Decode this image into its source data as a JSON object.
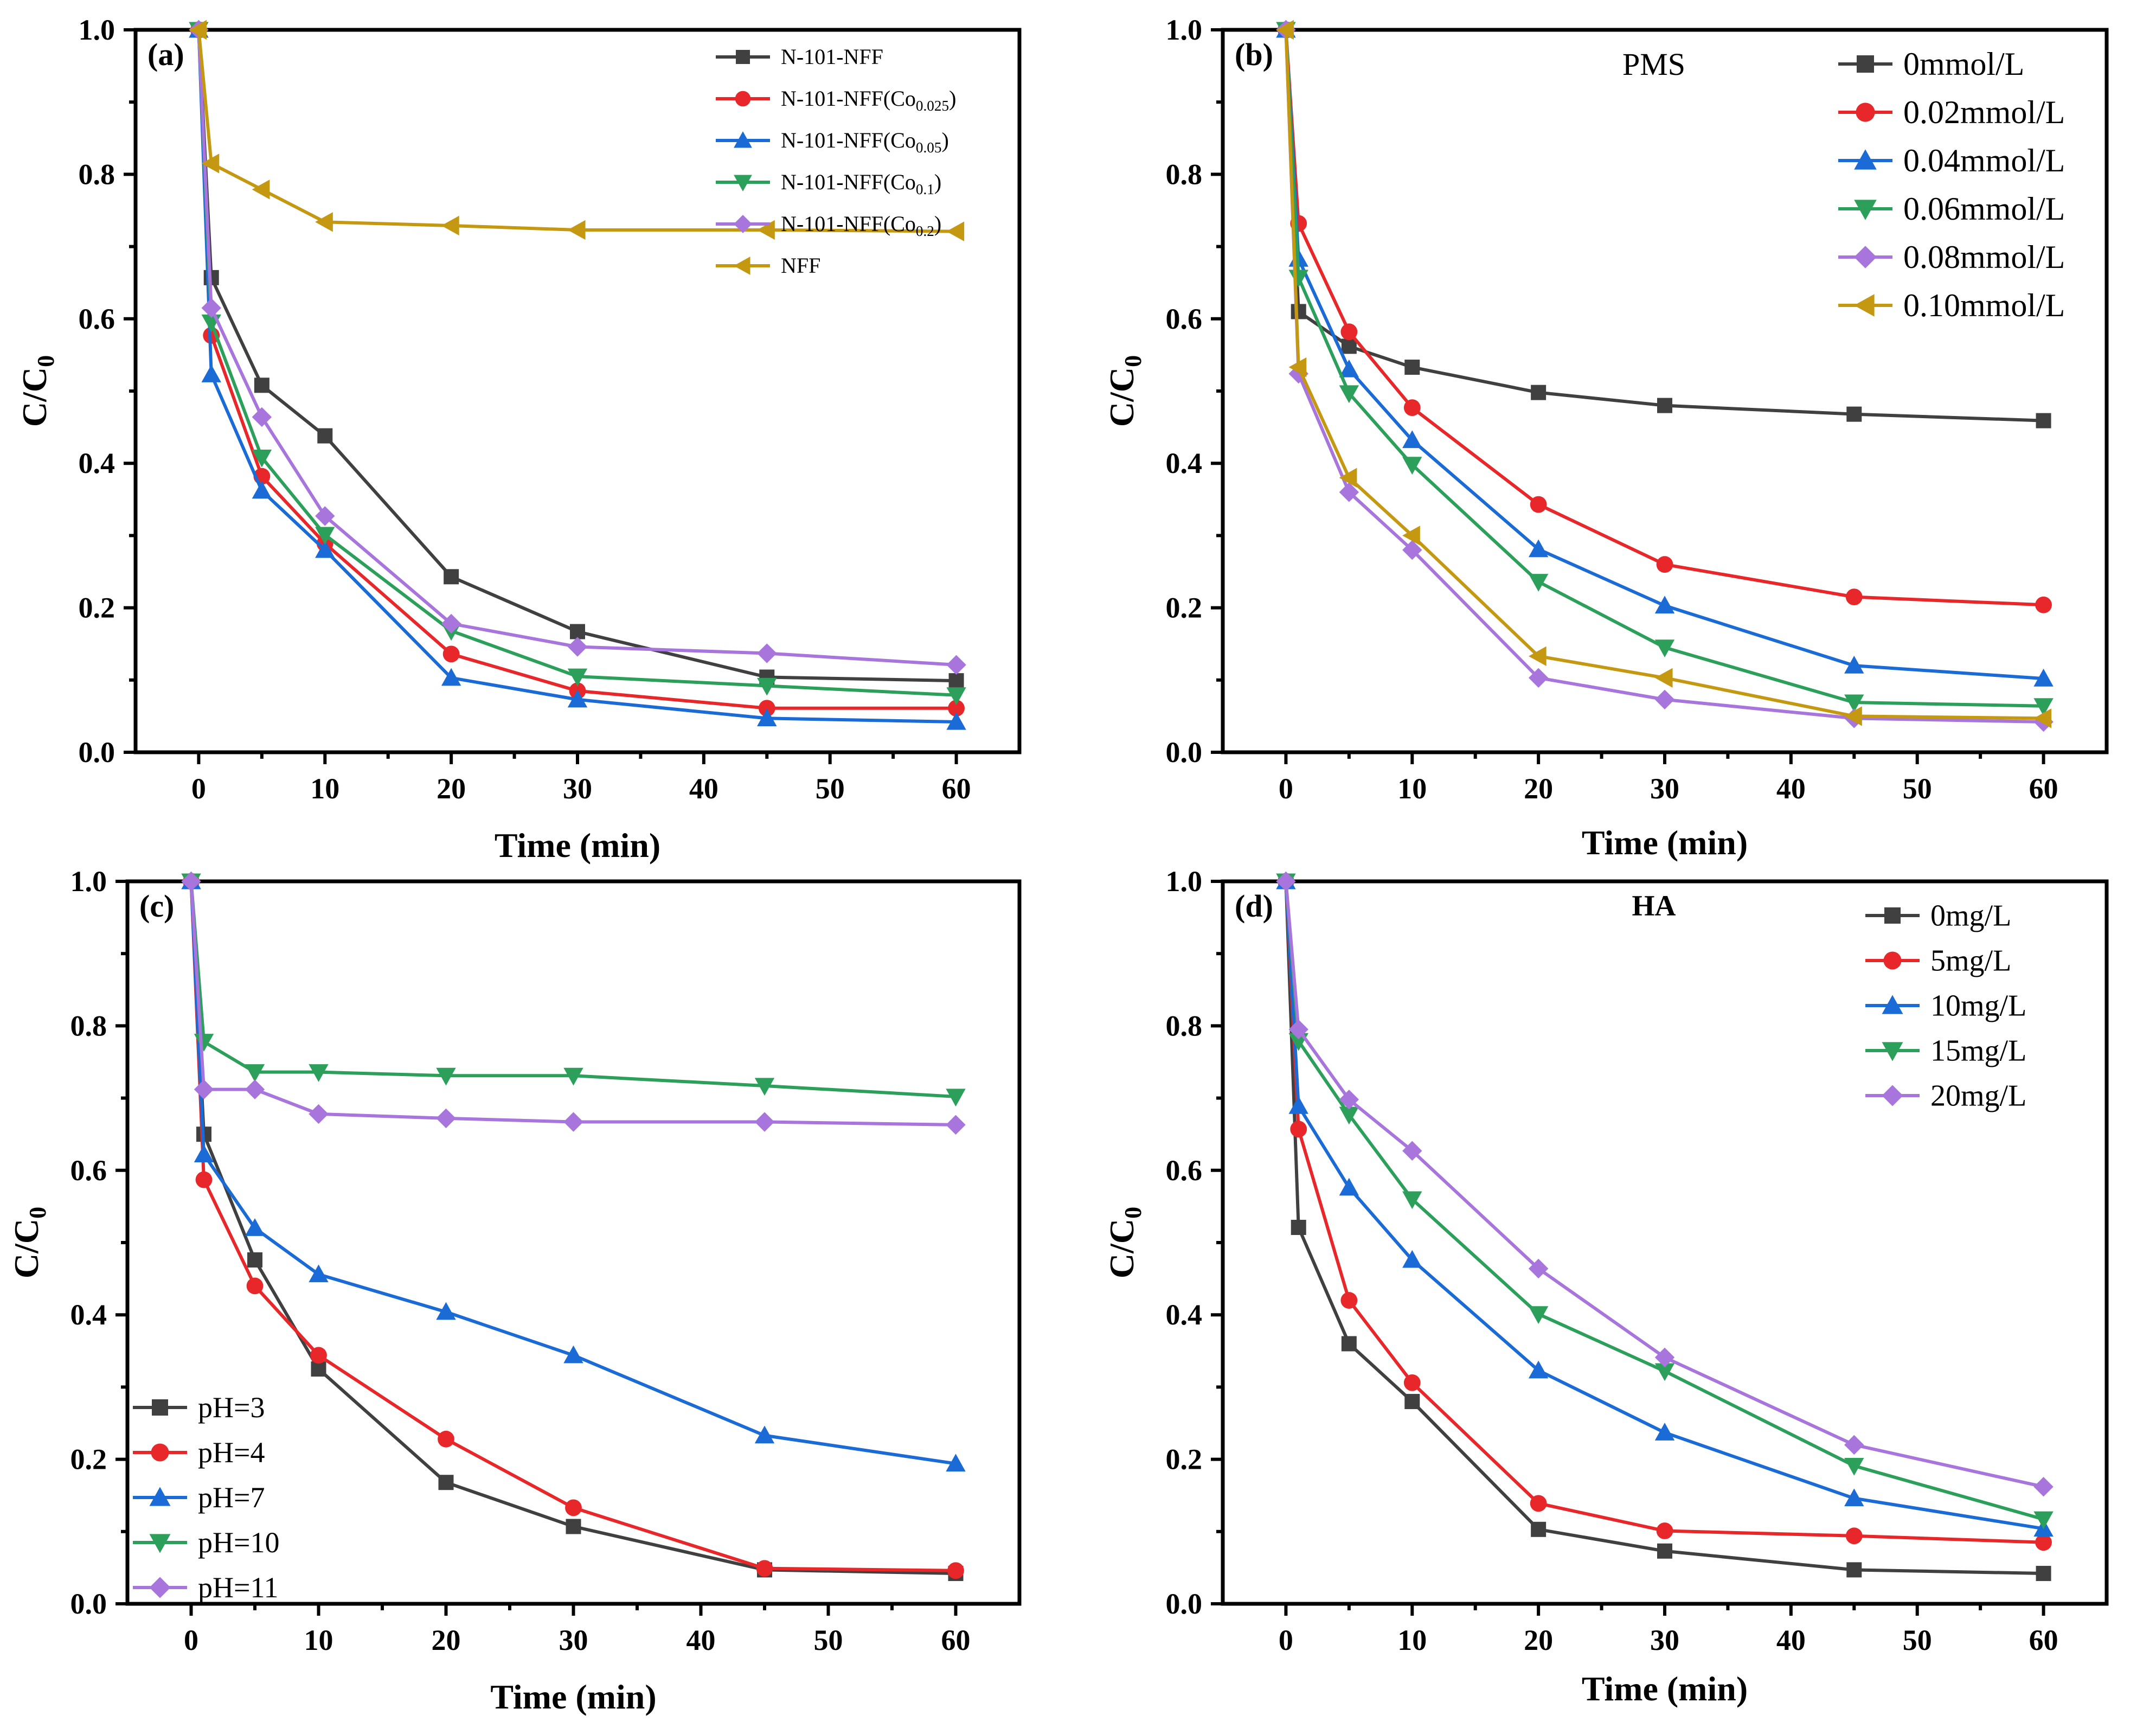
{
  "chart_data": [
    {
      "type": "line",
      "panel_label": "(a)",
      "annotation": "",
      "xlabel": "Time (min)",
      "ylabel": "C/C",
      "ylabel_sub": "0",
      "xlim": [
        -5,
        65
      ],
      "ylim": [
        0,
        1.0
      ],
      "xticks": [
        0,
        10,
        20,
        30,
        40,
        50,
        60
      ],
      "yticks": [
        0.0,
        0.2,
        0.4,
        0.6,
        0.8,
        1.0
      ],
      "xtick_labels": [
        "0",
        "10",
        "20",
        "30",
        "40",
        "50",
        "60"
      ],
      "ytick_labels": [
        "0.0",
        "0.2",
        "0.4",
        "0.6",
        "0.8",
        "1.0"
      ],
      "legend_position": "top-right",
      "x": [
        0,
        1,
        5,
        10,
        20,
        30,
        45,
        60
      ],
      "series": [
        {
          "name": "N-101-NFF",
          "name_sub": "",
          "name_end": "",
          "marker": "square",
          "color": "#404040",
          "values": [
            1.0,
            0.657,
            0.508,
            0.438,
            0.243,
            0.167,
            0.104,
            0.099
          ]
        },
        {
          "name": "N-101-NFF(Co",
          "name_sub": "0.025",
          "name_end": ")",
          "marker": "circle",
          "color": "#e8272a",
          "values": [
            1.0,
            0.577,
            0.382,
            0.289,
            0.136,
            0.085,
            0.061,
            0.061
          ]
        },
        {
          "name": "N-101-NFF(Co",
          "name_sub": "0.05",
          "name_end": ")",
          "marker": "triangle-up",
          "color": "#1a6bd6",
          "values": [
            1.0,
            0.523,
            0.362,
            0.28,
            0.103,
            0.073,
            0.047,
            0.042
          ]
        },
        {
          "name": "N-101-NFF(Co",
          "name_sub": "0.1",
          "name_end": ")",
          "marker": "triangle-down",
          "color": "#2ca05a",
          "values": [
            1.0,
            0.595,
            0.408,
            0.301,
            0.168,
            0.105,
            0.092,
            0.079
          ]
        },
        {
          "name": "N-101-NFF(Co",
          "name_sub": "0.2",
          "name_end": ")",
          "marker": "diamond",
          "color": "#a875dc",
          "values": [
            1.0,
            0.615,
            0.464,
            0.327,
            0.178,
            0.146,
            0.137,
            0.121
          ]
        },
        {
          "name": "NFF",
          "name_sub": "",
          "name_end": "",
          "marker": "triangle-left",
          "color": "#c59812",
          "values": [
            1.0,
            0.815,
            0.779,
            0.734,
            0.729,
            0.723,
            0.723,
            0.721
          ]
        }
      ]
    },
    {
      "type": "line",
      "panel_label": "(b)",
      "annotation": "PMS",
      "xlabel": "Time (min)",
      "ylabel": "C/C",
      "ylabel_sub": "0",
      "xlim": [
        -5,
        65
      ],
      "ylim": [
        0,
        1.0
      ],
      "xticks": [
        0,
        10,
        20,
        30,
        40,
        50,
        60
      ],
      "yticks": [
        0.0,
        0.2,
        0.4,
        0.6,
        0.8,
        1.0
      ],
      "xtick_labels": [
        "0",
        "10",
        "20",
        "30",
        "40",
        "50",
        "60"
      ],
      "ytick_labels": [
        "0.0",
        "0.2",
        "0.4",
        "0.6",
        "0.8",
        "1.0"
      ],
      "legend_position": "top-right",
      "x": [
        0,
        1,
        5,
        10,
        20,
        30,
        45,
        60
      ],
      "series": [
        {
          "name": "0mmol/L",
          "name_sub": "",
          "name_end": "",
          "marker": "square",
          "color": "#404040",
          "values": [
            1.0,
            0.61,
            0.562,
            0.533,
            0.498,
            0.48,
            0.468,
            0.459
          ]
        },
        {
          "name": "0.02mmol/L",
          "name_sub": "",
          "name_end": "",
          "marker": "circle",
          "color": "#e8272a",
          "values": [
            1.0,
            0.732,
            0.582,
            0.477,
            0.343,
            0.26,
            0.215,
            0.204
          ]
        },
        {
          "name": "0.04mmol/L",
          "name_sub": "",
          "name_end": "",
          "marker": "triangle-up",
          "color": "#1a6bd6",
          "values": [
            1.0,
            0.683,
            0.53,
            0.432,
            0.281,
            0.203,
            0.12,
            0.102
          ]
        },
        {
          "name": "0.06mmol/L",
          "name_sub": "",
          "name_end": "",
          "marker": "triangle-down",
          "color": "#2ca05a",
          "values": [
            1.0,
            0.657,
            0.497,
            0.398,
            0.236,
            0.145,
            0.069,
            0.064
          ]
        },
        {
          "name": "0.08mmol/L",
          "name_sub": "",
          "name_end": "",
          "marker": "diamond",
          "color": "#a875dc",
          "values": [
            1.0,
            0.524,
            0.36,
            0.28,
            0.103,
            0.073,
            0.047,
            0.042
          ]
        },
        {
          "name": "0.10mmol/L",
          "name_sub": "",
          "name_end": "",
          "marker": "triangle-left",
          "color": "#c59812",
          "values": [
            1.0,
            0.533,
            0.38,
            0.3,
            0.133,
            0.103,
            0.05,
            0.047
          ]
        }
      ]
    },
    {
      "type": "line",
      "panel_label": "(c)",
      "annotation": "",
      "xlabel": "Time (min)",
      "ylabel": "C/C",
      "ylabel_sub": "0",
      "xlim": [
        -5,
        65
      ],
      "ylim": [
        0,
        1.0
      ],
      "xticks": [
        0,
        10,
        20,
        30,
        40,
        50,
        60
      ],
      "yticks": [
        0.0,
        0.2,
        0.4,
        0.6,
        0.8,
        1.0
      ],
      "xtick_labels": [
        "0",
        "10",
        "20",
        "30",
        "40",
        "50",
        "60"
      ],
      "ytick_labels": [
        "0.0",
        "0.2",
        "0.4",
        "0.6",
        "0.8",
        "1.0"
      ],
      "legend_position": "bottom-left",
      "x": [
        0,
        1,
        5,
        10,
        20,
        30,
        45,
        60
      ],
      "series": [
        {
          "name": "pH=3",
          "name_sub": "",
          "name_end": "",
          "marker": "square",
          "color": "#404040",
          "values": [
            1.0,
            0.65,
            0.476,
            0.325,
            0.168,
            0.107,
            0.047,
            0.042
          ]
        },
        {
          "name": "pH=4",
          "name_sub": "",
          "name_end": "",
          "marker": "circle",
          "color": "#e8272a",
          "values": [
            1.0,
            0.587,
            0.44,
            0.344,
            0.228,
            0.133,
            0.049,
            0.046
          ]
        },
        {
          "name": "pH=7",
          "name_sub": "",
          "name_end": "",
          "marker": "triangle-up",
          "color": "#1a6bd6",
          "values": [
            1.0,
            0.622,
            0.52,
            0.456,
            0.404,
            0.344,
            0.233,
            0.194
          ]
        },
        {
          "name": "pH=10",
          "name_sub": "",
          "name_end": "",
          "marker": "triangle-down",
          "color": "#2ca05a",
          "values": [
            1.0,
            0.778,
            0.736,
            0.736,
            0.731,
            0.731,
            0.717,
            0.702
          ]
        },
        {
          "name": "pH=11",
          "name_sub": "",
          "name_end": "",
          "marker": "diamond",
          "color": "#a875dc",
          "values": [
            1.0,
            0.712,
            0.712,
            0.678,
            0.672,
            0.667,
            0.667,
            0.663
          ]
        }
      ]
    },
    {
      "type": "line",
      "panel_label": "(d)",
      "annotation": "HA",
      "xlabel": "Time (min)",
      "ylabel": "C/C",
      "ylabel_sub": "0",
      "xlim": [
        -5,
        65
      ],
      "ylim": [
        0,
        1.0
      ],
      "xticks": [
        0,
        10,
        20,
        30,
        40,
        50,
        60
      ],
      "yticks": [
        0.0,
        0.2,
        0.4,
        0.6,
        0.8,
        1.0
      ],
      "xtick_labels": [
        "0",
        "10",
        "20",
        "30",
        "40",
        "50",
        "60"
      ],
      "ytick_labels": [
        "0.0",
        "0.2",
        "0.4",
        "0.6",
        "0.8",
        "1.0"
      ],
      "legend_position": "top-right",
      "x": [
        0,
        1,
        5,
        10,
        20,
        30,
        45,
        60
      ],
      "series": [
        {
          "name": "0mg/L",
          "name_sub": "",
          "name_end": "",
          "marker": "square",
          "color": "#404040",
          "values": [
            1.0,
            0.521,
            0.36,
            0.28,
            0.103,
            0.073,
            0.047,
            0.042
          ]
        },
        {
          "name": "5mg/L",
          "name_sub": "",
          "name_end": "",
          "marker": "circle",
          "color": "#e8272a",
          "values": [
            1.0,
            0.657,
            0.42,
            0.306,
            0.139,
            0.101,
            0.094,
            0.085
          ]
        },
        {
          "name": "10mg/L",
          "name_sub": "",
          "name_end": "",
          "marker": "triangle-up",
          "color": "#1a6bd6",
          "values": [
            1.0,
            0.689,
            0.576,
            0.476,
            0.323,
            0.237,
            0.146,
            0.104
          ]
        },
        {
          "name": "15mg/L",
          "name_sub": "",
          "name_end": "",
          "marker": "triangle-down",
          "color": "#2ca05a",
          "values": [
            1.0,
            0.779,
            0.677,
            0.56,
            0.401,
            0.322,
            0.191,
            0.117
          ]
        },
        {
          "name": "20mg/L",
          "name_sub": "",
          "name_end": "",
          "marker": "diamond",
          "color": "#a875dc",
          "values": [
            1.0,
            0.795,
            0.698,
            0.627,
            0.464,
            0.341,
            0.22,
            0.162
          ]
        }
      ]
    }
  ]
}
